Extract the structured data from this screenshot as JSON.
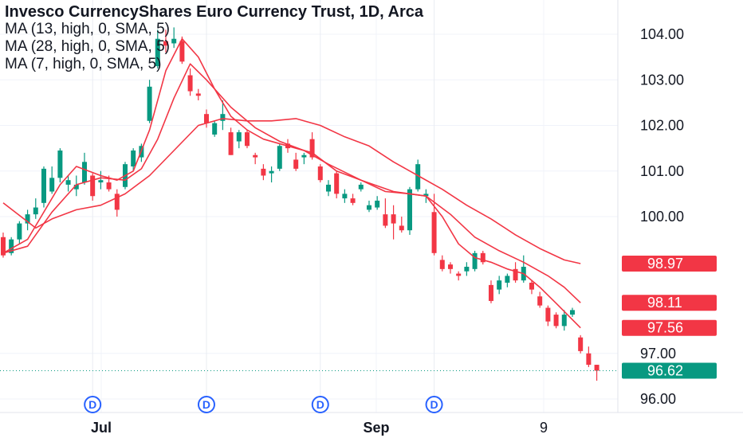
{
  "legend": {
    "title": "Invesco CurrencyShares Euro Currency Trust, 1D, Arca",
    "ma_lines": [
      "MA (13, high, 0, SMA, 5)",
      "MA (28, high, 0, SMA, 5)",
      "MA (7, high, 0, SMA, 5)"
    ]
  },
  "colors": {
    "up": "#089981",
    "down": "#f23645",
    "ma": "#f23645",
    "dividend": "#2962ff",
    "last": "#089981"
  },
  "chart_data": {
    "type": "candlestick",
    "y_ticks": [
      "104.00",
      "103.00",
      "102.00",
      "101.00",
      "100.00",
      "97.00",
      "96.00"
    ],
    "x_ticks": [
      "Jul",
      "Sep",
      "9"
    ],
    "ylim": [
      95.85,
      104.5
    ],
    "badges": [
      {
        "label": "98.97",
        "value": 98.97,
        "color": "#f23645"
      },
      {
        "label": "98.11",
        "value": 98.11,
        "color": "#f23645"
      },
      {
        "label": "97.56",
        "value": 97.56,
        "color": "#f23645"
      },
      {
        "label": "96.62",
        "value": 96.62,
        "color": "#089981"
      }
    ],
    "dividend_marker": "D",
    "dividend_bars": [
      11,
      25,
      39,
      53
    ],
    "candles": [
      [
        99.55,
        99.65,
        99.1,
        99.15
      ],
      [
        99.2,
        99.55,
        99.15,
        99.5
      ],
      [
        99.5,
        99.9,
        99.4,
        99.85
      ],
      [
        99.85,
        100.15,
        99.7,
        100.05
      ],
      [
        100.05,
        100.4,
        99.95,
        100.2
      ],
      [
        100.3,
        101.1,
        100.2,
        101.05
      ],
      [
        100.55,
        101.1,
        100.5,
        100.85
      ],
      [
        100.85,
        101.5,
        100.75,
        101.45
      ],
      [
        100.7,
        100.9,
        100.55,
        100.8
      ],
      [
        100.6,
        100.9,
        100.45,
        100.7
      ],
      [
        100.75,
        101.4,
        100.7,
        101.2
      ],
      [
        100.9,
        100.95,
        100.35,
        100.45
      ],
      [
        100.75,
        101.0,
        100.6,
        100.8
      ],
      [
        100.75,
        100.9,
        100.55,
        100.6
      ],
      [
        100.5,
        100.6,
        100.0,
        100.15
      ],
      [
        100.65,
        101.2,
        100.6,
        101.15
      ],
      [
        101.1,
        101.5,
        101.0,
        101.45
      ],
      [
        101.3,
        101.6,
        101.2,
        101.55
      ],
      [
        102.1,
        103.0,
        102.05,
        102.85
      ],
      [
        103.3,
        104.1,
        103.25,
        103.9
      ],
      [
        103.85,
        104.1,
        103.6,
        103.75
      ],
      [
        103.8,
        104.15,
        103.7,
        103.9
      ],
      [
        103.85,
        103.95,
        103.35,
        103.4
      ],
      [
        103.1,
        103.25,
        102.65,
        102.75
      ],
      [
        102.7,
        102.8,
        102.55,
        102.65
      ],
      [
        102.25,
        102.35,
        101.95,
        102.05
      ],
      [
        101.8,
        102.1,
        101.75,
        102.05
      ],
      [
        102.1,
        102.55,
        101.9,
        102.25
      ],
      [
        101.85,
        101.95,
        101.35,
        101.35
      ],
      [
        101.65,
        101.9,
        101.5,
        101.85
      ],
      [
        101.85,
        101.9,
        101.5,
        101.55
      ],
      [
        101.35,
        101.4,
        101.15,
        101.3
      ],
      [
        101.05,
        101.15,
        100.8,
        100.9
      ],
      [
        100.95,
        101.1,
        100.75,
        101.0
      ],
      [
        101.05,
        101.6,
        101.0,
        101.55
      ],
      [
        101.6,
        101.7,
        101.4,
        101.5
      ],
      [
        101.25,
        101.4,
        101.0,
        101.05
      ],
      [
        101.3,
        101.4,
        101.15,
        101.35
      ],
      [
        101.7,
        101.85,
        101.25,
        101.3
      ],
      [
        101.1,
        101.15,
        100.75,
        100.8
      ],
      [
        100.55,
        100.8,
        100.45,
        100.7
      ],
      [
        100.95,
        101.0,
        100.4,
        100.5
      ],
      [
        100.4,
        100.6,
        100.3,
        100.5
      ],
      [
        100.4,
        100.5,
        100.25,
        100.3
      ],
      [
        100.6,
        100.75,
        100.55,
        100.7
      ],
      [
        100.15,
        100.35,
        100.1,
        100.25
      ],
      [
        100.2,
        100.45,
        100.15,
        100.35
      ],
      [
        100.05,
        100.4,
        99.75,
        99.8
      ],
      [
        100.05,
        100.25,
        99.5,
        99.85
      ],
      [
        99.8,
        100.0,
        99.65,
        99.7
      ],
      [
        99.7,
        100.65,
        99.6,
        100.6
      ],
      [
        100.6,
        101.25,
        100.55,
        101.15
      ],
      [
        100.45,
        100.6,
        100.3,
        100.5
      ],
      [
        100.1,
        100.5,
        99.15,
        99.2
      ],
      [
        99.05,
        99.15,
        98.8,
        98.85
      ],
      [
        98.95,
        99.0,
        98.75,
        98.85
      ],
      [
        98.75,
        98.8,
        98.6,
        98.7
      ],
      [
        98.8,
        99.0,
        98.7,
        98.9
      ],
      [
        98.85,
        99.25,
        98.8,
        99.2
      ],
      [
        99.2,
        99.25,
        98.95,
        99.0
      ],
      [
        98.5,
        98.6,
        98.1,
        98.15
      ],
      [
        98.4,
        98.7,
        98.3,
        98.6
      ],
      [
        98.55,
        98.75,
        98.45,
        98.7
      ],
      [
        98.85,
        99.0,
        98.55,
        98.6
      ],
      [
        98.6,
        99.15,
        98.55,
        98.9
      ],
      [
        98.55,
        98.6,
        98.3,
        98.4
      ],
      [
        98.25,
        98.35,
        98.0,
        98.05
      ],
      [
        98.0,
        98.05,
        97.6,
        97.7
      ],
      [
        97.85,
        97.9,
        97.55,
        97.6
      ],
      [
        97.6,
        97.95,
        97.5,
        97.85
      ],
      [
        97.85,
        98.0,
        97.8,
        97.95
      ],
      [
        97.35,
        97.4,
        97.0,
        97.05
      ],
      [
        97.0,
        97.15,
        96.7,
        96.75
      ],
      [
        96.75,
        96.75,
        96.4,
        96.62
      ]
    ],
    "ma7": [
      [
        0,
        99.2
      ],
      [
        3,
        99.5
      ],
      [
        7,
        100.7
      ],
      [
        9,
        101.1
      ],
      [
        12,
        100.9
      ],
      [
        14,
        100.8
      ],
      [
        16,
        101.0
      ],
      [
        18,
        101.9
      ],
      [
        20,
        103.2
      ],
      [
        22,
        103.9
      ],
      [
        24,
        103.5
      ],
      [
        26,
        102.8
      ],
      [
        28,
        102.2
      ],
      [
        30,
        101.9
      ],
      [
        32,
        101.7
      ],
      [
        35,
        101.55
      ],
      [
        38,
        101.4
      ],
      [
        41,
        101.0
      ],
      [
        44,
        100.8
      ],
      [
        47,
        100.55
      ],
      [
        50,
        100.5
      ],
      [
        52,
        100.45
      ],
      [
        54,
        100.0
      ],
      [
        56,
        99.4
      ],
      [
        58,
        99.1
      ],
      [
        60,
        99.0
      ],
      [
        62,
        98.85
      ],
      [
        64,
        98.75
      ],
      [
        66,
        98.45
      ],
      [
        68,
        98.1
      ],
      [
        71,
        97.56
      ]
    ],
    "ma13": [
      [
        0,
        99.2
      ],
      [
        3,
        99.35
      ],
      [
        6,
        100.1
      ],
      [
        9,
        100.7
      ],
      [
        12,
        100.85
      ],
      [
        15,
        100.8
      ],
      [
        17,
        101.05
      ],
      [
        19,
        101.7
      ],
      [
        21,
        102.6
      ],
      [
        23,
        103.35
      ],
      [
        25,
        103.0
      ],
      [
        28,
        102.4
      ],
      [
        31,
        101.95
      ],
      [
        34,
        101.65
      ],
      [
        37,
        101.45
      ],
      [
        40,
        101.15
      ],
      [
        44,
        100.8
      ],
      [
        48,
        100.55
      ],
      [
        52,
        100.45
      ],
      [
        55,
        100.05
      ],
      [
        58,
        99.55
      ],
      [
        61,
        99.25
      ],
      [
        64,
        99.0
      ],
      [
        67,
        98.7
      ],
      [
        69,
        98.45
      ],
      [
        71,
        98.11
      ]
    ],
    "ma28": [
      [
        0,
        100.3
      ],
      [
        4,
        99.75
      ],
      [
        6,
        99.95
      ],
      [
        9,
        100.15
      ],
      [
        12,
        100.25
      ],
      [
        15,
        100.5
      ],
      [
        18,
        100.9
      ],
      [
        21,
        101.45
      ],
      [
        24,
        102.0
      ],
      [
        27,
        102.15
      ],
      [
        30,
        102.1
      ],
      [
        33,
        102.1
      ],
      [
        36,
        102.15
      ],
      [
        39,
        102.0
      ],
      [
        42,
        101.75
      ],
      [
        45,
        101.55
      ],
      [
        48,
        101.2
      ],
      [
        51,
        100.9
      ],
      [
        54,
        100.6
      ],
      [
        57,
        100.25
      ],
      [
        60,
        99.95
      ],
      [
        63,
        99.6
      ],
      [
        66,
        99.3
      ],
      [
        69,
        99.05
      ],
      [
        71,
        98.97
      ]
    ]
  }
}
